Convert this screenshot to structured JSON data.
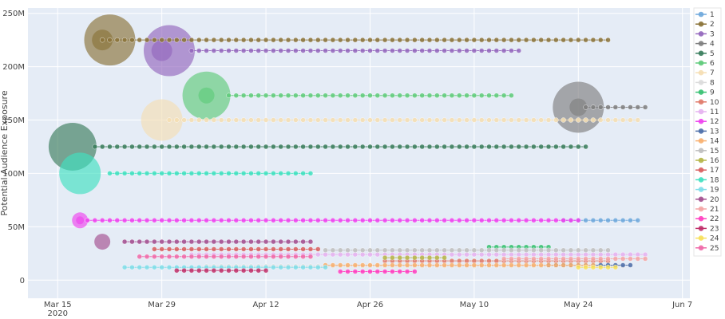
{
  "chart_data": {
    "type": "scatter",
    "title": "",
    "xlabel": "",
    "ylabel": "Potential Audience Exposure",
    "x_ticks": [
      {
        "date": "2020-03-15",
        "label": "Mar 15",
        "sub": "2020"
      },
      {
        "date": "2020-03-29",
        "label": "Mar 29",
        "sub": ""
      },
      {
        "date": "2020-04-12",
        "label": "Apr 12",
        "sub": ""
      },
      {
        "date": "2020-04-26",
        "label": "Apr 26",
        "sub": ""
      },
      {
        "date": "2020-05-10",
        "label": "May 10",
        "sub": ""
      },
      {
        "date": "2020-05-24",
        "label": "May 24",
        "sub": ""
      },
      {
        "date": "2020-06-07",
        "label": "Jun 7",
        "sub": ""
      }
    ],
    "y_ticks": [
      {
        "value": 0,
        "label": "0"
      },
      {
        "value": 50000000,
        "label": "50M"
      },
      {
        "value": 100000000,
        "label": "100M"
      },
      {
        "value": 150000000,
        "label": "150M"
      },
      {
        "value": 200000000,
        "label": "200M"
      },
      {
        "value": 250000000,
        "label": "250M"
      }
    ],
    "xlim": [
      "2020-03-11",
      "2020-06-08"
    ],
    "ylim": [
      -17000000,
      255000000
    ],
    "grid": true,
    "legend_position": "right",
    "series": [
      {
        "name": "1",
        "color": "#6fa8dc",
        "y": 56000000,
        "start": "2020-05-22",
        "end": "2020-06-01",
        "bubbles": [
          {
            "date": "2020-05-22",
            "r": 3
          }
        ]
      },
      {
        "name": "2",
        "color": "#8b7339",
        "y": 225000000,
        "start": "2020-03-21",
        "end": "2020-05-28",
        "bubbles": [
          {
            "date": "2020-03-22",
            "r": 32
          },
          {
            "date": "2020-03-21",
            "r": 13
          }
        ]
      },
      {
        "name": "3",
        "color": "#9467bd",
        "y": 215000000,
        "start": "2020-04-02",
        "end": "2020-05-16",
        "bubbles": [
          {
            "date": "2020-03-30",
            "r": 32
          },
          {
            "date": "2020-03-29",
            "r": 13
          }
        ]
      },
      {
        "name": "4",
        "color": "#7f7f7f",
        "y": 162000000,
        "start": "2020-05-25",
        "end": "2020-06-02",
        "bubbles": [
          {
            "date": "2020-05-24",
            "r": 32
          },
          {
            "date": "2020-05-24",
            "r": 11
          }
        ]
      },
      {
        "name": "5",
        "color": "#3a7d5c",
        "y": 125000000,
        "start": "2020-03-20",
        "end": "2020-05-25",
        "bubbles": [
          {
            "date": "2020-03-17",
            "r": 30
          }
        ]
      },
      {
        "name": "6",
        "color": "#5fcb7a",
        "y": 173000000,
        "start": "2020-04-07",
        "end": "2020-05-15",
        "bubbles": [
          {
            "date": "2020-04-04",
            "r": 30
          },
          {
            "date": "2020-04-04",
            "r": 10
          }
        ]
      },
      {
        "name": "7",
        "color": "#f5deb3",
        "y": 150000000,
        "start": "2020-03-30",
        "end": "2020-06-01",
        "bubbles": [
          {
            "date": "2020-03-29",
            "r": 26
          }
        ]
      },
      {
        "name": "8",
        "color": "#dcdcdc",
        "y": 13000000,
        "start": "2020-04-04",
        "end": "2020-05-30",
        "bubbles": []
      },
      {
        "name": "9",
        "color": "#38c172",
        "y": 31000000,
        "start": "2020-05-12",
        "end": "2020-05-20",
        "bubbles": []
      },
      {
        "name": "10",
        "color": "#e07b6b",
        "y": 18000000,
        "start": "2020-04-28",
        "end": "2020-05-28",
        "bubbles": []
      },
      {
        "name": "11",
        "color": "#e5b3f0",
        "y": 24000000,
        "start": "2020-04-02",
        "end": "2020-06-02",
        "bubbles": []
      },
      {
        "name": "12",
        "color": "#ee44ee",
        "y": 56000000,
        "start": "2020-03-19",
        "end": "2020-05-24",
        "bubbles": [
          {
            "date": "2020-03-18",
            "r": 10
          },
          {
            "date": "2020-03-18",
            "r": 5
          }
        ]
      },
      {
        "name": "13",
        "color": "#4d6ea8",
        "y": 14000000,
        "start": "2020-05-20",
        "end": "2020-05-31",
        "bubbles": []
      },
      {
        "name": "14",
        "color": "#f8b070",
        "y": 14000000,
        "start": "2020-04-20",
        "end": "2020-05-26",
        "bubbles": []
      },
      {
        "name": "15",
        "color": "#bfbfbf",
        "y": 28000000,
        "start": "2020-04-20",
        "end": "2020-05-28",
        "bubbles": []
      },
      {
        "name": "16",
        "color": "#b5b548",
        "y": 21000000,
        "start": "2020-04-28",
        "end": "2020-05-06",
        "bubbles": []
      },
      {
        "name": "17",
        "color": "#d95f5f",
        "y": 29000000,
        "start": "2020-03-28",
        "end": "2020-04-19",
        "bubbles": []
      },
      {
        "name": "18",
        "color": "#40e0c0",
        "y": 100000000,
        "start": "2020-03-22",
        "end": "2020-04-18",
        "bubbles": [
          {
            "date": "2020-03-18",
            "r": 26
          }
        ]
      },
      {
        "name": "19",
        "color": "#7fdde8",
        "y": 12000000,
        "start": "2020-03-24",
        "end": "2020-04-20",
        "bubbles": []
      },
      {
        "name": "20",
        "color": "#a34f8f",
        "y": 36000000,
        "start": "2020-03-24",
        "end": "2020-04-18",
        "bubbles": [
          {
            "date": "2020-03-21",
            "r": 10
          }
        ]
      },
      {
        "name": "21",
        "color": "#f4a6a6",
        "y": 20000000,
        "start": "2020-05-14",
        "end": "2020-06-02",
        "bubbles": []
      },
      {
        "name": "22",
        "color": "#ff40c0",
        "y": 8000000,
        "start": "2020-04-22",
        "end": "2020-05-02",
        "bubbles": []
      },
      {
        "name": "23",
        "color": "#c0306a",
        "y": 9000000,
        "start": "2020-03-31",
        "end": "2020-04-12",
        "bubbles": []
      },
      {
        "name": "24",
        "color": "#f7e05a",
        "y": 12000000,
        "start": "2020-05-24",
        "end": "2020-05-29",
        "bubbles": []
      },
      {
        "name": "25",
        "color": "#f06aa8",
        "y": 22000000,
        "start": "2020-03-26",
        "end": "2020-04-18",
        "bubbles": []
      }
    ]
  }
}
